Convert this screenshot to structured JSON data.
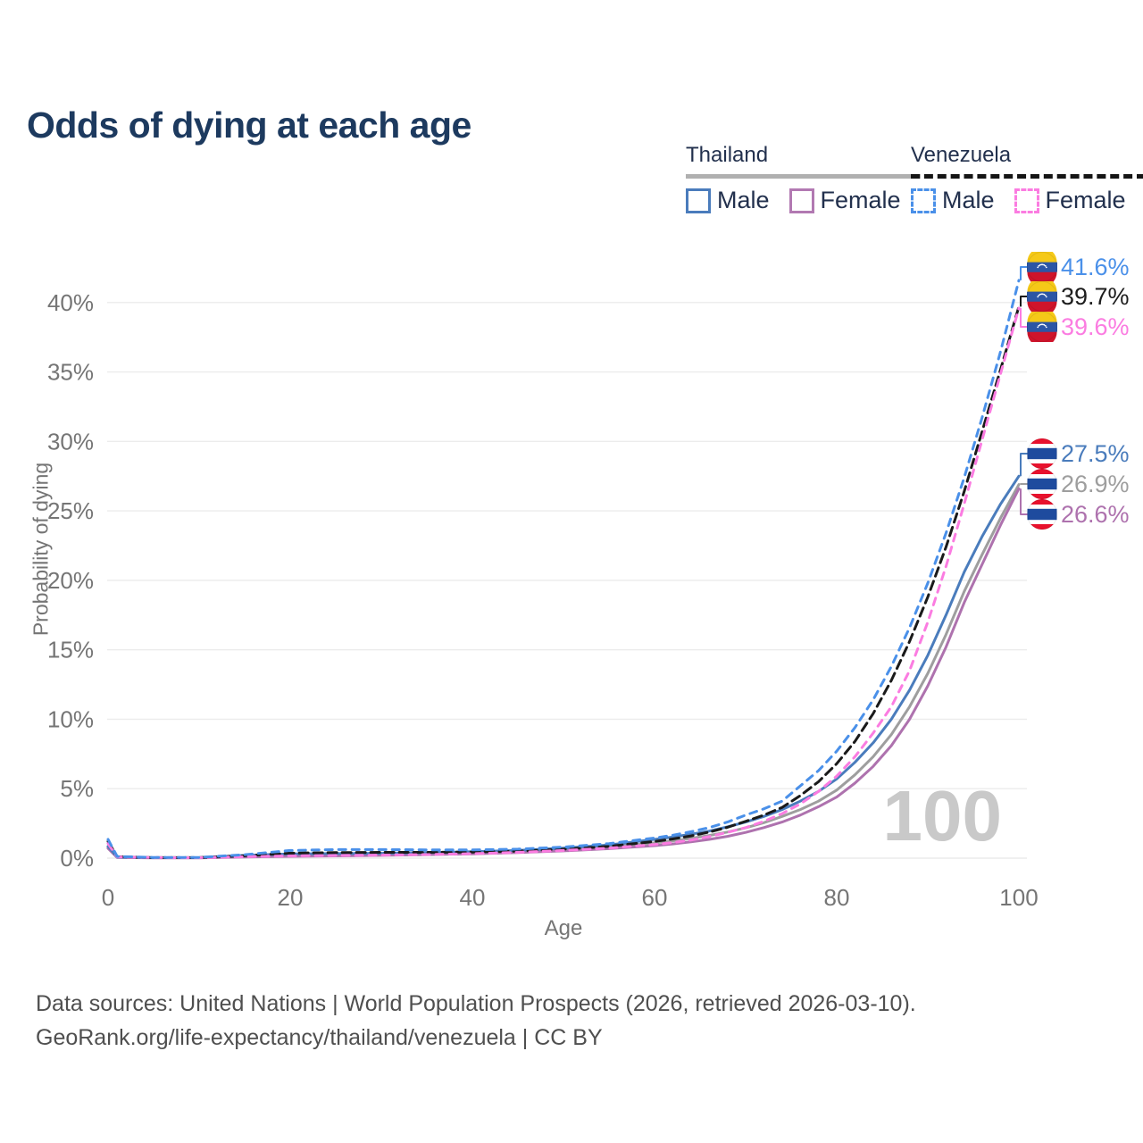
{
  "title": "Odds of dying at each age",
  "legend": {
    "groups": [
      {
        "country": "Thailand",
        "line_style": "solid",
        "line_color": "#b0b0b0",
        "items": [
          {
            "label": "Male",
            "color": "#4a7cbc",
            "style": "solid"
          },
          {
            "label": "Female",
            "color": "#b279b2",
            "style": "solid"
          }
        ]
      },
      {
        "country": "Venezuela",
        "line_style": "dashed",
        "line_color": "#151515",
        "items": [
          {
            "label": "Male",
            "color": "#4a90e9",
            "style": "dashed"
          },
          {
            "label": "Female",
            "color": "#fb7ce1",
            "style": "dashed"
          }
        ]
      }
    ]
  },
  "chart_data": {
    "type": "line",
    "title": "Odds of dying at each age",
    "xlabel": "Age",
    "ylabel": "Probability of dying",
    "xlim": [
      0,
      100
    ],
    "ylim_percent": [
      0,
      43
    ],
    "x_ticks": [
      0,
      20,
      40,
      60,
      80,
      100
    ],
    "y_ticks": [
      "0%",
      "5%",
      "10%",
      "15%",
      "20%",
      "25%",
      "30%",
      "35%",
      "40%"
    ],
    "y_tick_step_percent": 5,
    "grid": true,
    "legend_position": "top-right",
    "watermark": "100",
    "x": [
      0,
      1,
      5,
      10,
      15,
      20,
      25,
      30,
      35,
      40,
      45,
      50,
      55,
      60,
      62,
      64,
      66,
      68,
      70,
      72,
      74,
      76,
      78,
      80,
      82,
      84,
      86,
      88,
      90,
      92,
      94,
      96,
      98,
      100
    ],
    "series": [
      {
        "name": "Thailand Overall",
        "country": "Thailand",
        "sex": "Overall",
        "color": "#9e9e9e",
        "dashed": false,
        "flag": "thailand",
        "end_label": "26.9%",
        "values": [
          0.78,
          0.06,
          0.03,
          0.03,
          0.15,
          0.22,
          0.25,
          0.28,
          0.32,
          0.38,
          0.48,
          0.6,
          0.8,
          1.1,
          1.25,
          1.42,
          1.63,
          1.88,
          2.18,
          2.55,
          3.0,
          3.5,
          4.1,
          4.9,
          6.0,
          7.3,
          8.9,
          10.9,
          13.3,
          16.1,
          19.2,
          21.9,
          24.5,
          26.9
        ]
      },
      {
        "name": "Thailand Female",
        "country": "Thailand",
        "sex": "Female",
        "color": "#ae72ae",
        "dashed": false,
        "flag": "thailand",
        "end_label": "26.6%",
        "values": [
          0.7,
          0.05,
          0.02,
          0.02,
          0.08,
          0.13,
          0.16,
          0.2,
          0.25,
          0.31,
          0.4,
          0.52,
          0.68,
          0.9,
          1.02,
          1.17,
          1.35,
          1.57,
          1.85,
          2.2,
          2.6,
          3.1,
          3.7,
          4.4,
          5.4,
          6.6,
          8.1,
          10.0,
          12.4,
          15.2,
          18.4,
          21.2,
          24.0,
          26.6
        ]
      },
      {
        "name": "Thailand Male",
        "country": "Thailand",
        "sex": "Male",
        "color": "#4a7cbc",
        "dashed": false,
        "flag": "thailand",
        "end_label": "27.5%",
        "values": [
          0.85,
          0.07,
          0.03,
          0.03,
          0.2,
          0.3,
          0.33,
          0.35,
          0.4,
          0.46,
          0.55,
          0.72,
          0.95,
          1.35,
          1.52,
          1.72,
          1.95,
          2.25,
          2.6,
          3.0,
          3.5,
          4.1,
          4.8,
          5.7,
          6.9,
          8.3,
          10.0,
          12.1,
          14.6,
          17.5,
          20.6,
          23.2,
          25.5,
          27.5
        ]
      },
      {
        "name": "Venezuela Overall",
        "country": "Venezuela",
        "sex": "Overall",
        "color": "#1a1a1a",
        "dashed": true,
        "flag": "venezuela",
        "end_label": "39.7%",
        "values": [
          1.2,
          0.1,
          0.04,
          0.04,
          0.17,
          0.36,
          0.4,
          0.42,
          0.42,
          0.44,
          0.5,
          0.64,
          0.85,
          1.2,
          1.38,
          1.6,
          1.88,
          2.22,
          2.65,
          3.1,
          3.65,
          4.5,
          5.5,
          6.8,
          8.4,
          10.4,
          12.8,
          15.6,
          18.8,
          22.4,
          26.4,
          30.8,
          35.2,
          39.7
        ]
      },
      {
        "name": "Venezuela Female",
        "country": "Venezuela",
        "sex": "Female",
        "color": "#fb7ce1",
        "dashed": true,
        "flag": "venezuela",
        "end_label": "39.6%",
        "values": [
          1.05,
          0.09,
          0.04,
          0.03,
          0.1,
          0.16,
          0.19,
          0.22,
          0.26,
          0.32,
          0.42,
          0.55,
          0.72,
          0.98,
          1.12,
          1.3,
          1.55,
          1.85,
          2.2,
          2.65,
          3.2,
          3.9,
          4.8,
          5.9,
          7.3,
          9.0,
          10.9,
          13.5,
          17.0,
          21.0,
          25.5,
          30.2,
          34.9,
          39.6
        ]
      },
      {
        "name": "Venezuela Male",
        "country": "Venezuela",
        "sex": "Male",
        "color": "#4a90e9",
        "dashed": true,
        "flag": "venezuela",
        "end_label": "41.6%",
        "values": [
          1.35,
          0.12,
          0.05,
          0.05,
          0.25,
          0.55,
          0.62,
          0.62,
          0.6,
          0.6,
          0.65,
          0.8,
          1.05,
          1.45,
          1.65,
          1.9,
          2.2,
          2.6,
          3.1,
          3.55,
          4.1,
          5.2,
          6.3,
          7.7,
          9.4,
          11.4,
          13.8,
          16.6,
          19.8,
          23.4,
          27.4,
          31.8,
          36.5,
          41.6
        ]
      }
    ]
  },
  "colors": {
    "title": "#1d3a5f",
    "tick_label": "#757575",
    "gridline": "#ececec",
    "watermark": "#c9c9c9",
    "footer": "#4f4f4f"
  },
  "flags": {
    "thailand": {
      "red": "#e8112d",
      "white": "#ffffff",
      "blue": "#1e4b9e"
    },
    "venezuela": {
      "yellow": "#f5c918",
      "blue": "#2c56a5",
      "red": "#cf142b",
      "stars": "#ffffff"
    }
  },
  "footer": {
    "line1": "Data sources: United Nations | World Population Prospects (2026, retrieved 2026-03-10).",
    "line2": "GeoRank.org/life-expectancy/thailand/venezuela | CC BY"
  }
}
